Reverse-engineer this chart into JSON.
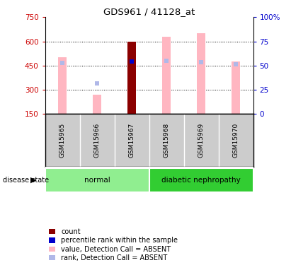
{
  "title": "GDS961 / 41128_at",
  "samples": [
    "GSM15965",
    "GSM15966",
    "GSM15967",
    "GSM15968",
    "GSM15969",
    "GSM15970"
  ],
  "groups": [
    {
      "name": "normal",
      "color": "#90ee90",
      "indices": [
        0,
        1,
        2
      ]
    },
    {
      "name": "diabetic nephropathy",
      "color": "#32cd32",
      "indices": [
        3,
        4,
        5
      ]
    }
  ],
  "ylim_left": [
    150,
    750
  ],
  "ylim_right": [
    0,
    100
  ],
  "yticks_left": [
    150,
    300,
    450,
    600,
    750
  ],
  "yticks_right": [
    0,
    25,
    50,
    75,
    100
  ],
  "ytick_labels_left": [
    "150",
    "300",
    "450",
    "600",
    "750"
  ],
  "ytick_labels_right": [
    "0",
    "25",
    "50",
    "75",
    "100%"
  ],
  "bar_color_pink": "#ffb6c1",
  "bar_color_rank_absent": "#b0b8e8",
  "bar_color_dark_red": "#8b0000",
  "bar_color_blue": "#0000cc",
  "values_pink": [
    500,
    270,
    0,
    630,
    650,
    475
  ],
  "values_rank_absent": [
    465,
    340,
    0,
    478,
    470,
    460
  ],
  "values_dark_red": [
    0,
    0,
    600,
    0,
    0,
    0
  ],
  "values_blue_rank": [
    0,
    0,
    475,
    0,
    0,
    0
  ],
  "absent_flags": [
    true,
    true,
    false,
    true,
    true,
    true
  ],
  "tick_color_left": "#cc0000",
  "tick_color_right": "#0000cc",
  "background_color": "#ffffff",
  "label_bg_color": "#cccccc",
  "grid_dotted_vals": [
    300,
    450,
    600
  ],
  "disease_state_label": "disease state",
  "legend_items": [
    {
      "color": "#8b0000",
      "label": "count"
    },
    {
      "color": "#0000cc",
      "label": "percentile rank within the sample"
    },
    {
      "color": "#ffb6c1",
      "label": "value, Detection Call = ABSENT"
    },
    {
      "color": "#b0b8e8",
      "label": "rank, Detection Call = ABSENT"
    }
  ]
}
